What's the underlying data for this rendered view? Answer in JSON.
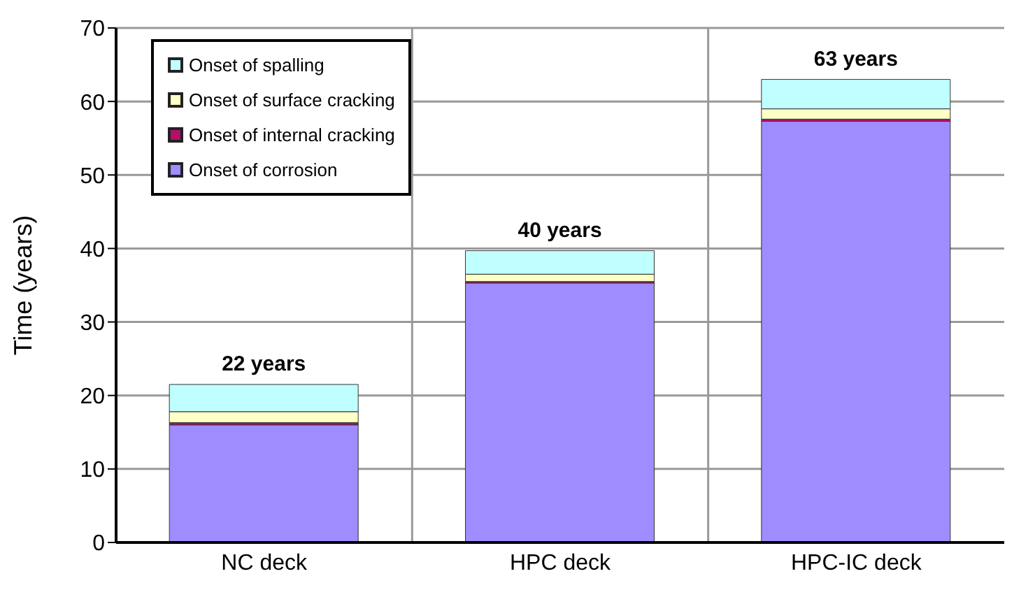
{
  "chart_data": {
    "type": "bar",
    "stacked": true,
    "ylabel": "Time (years)",
    "categories": [
      "NC deck",
      "HPC deck",
      "HPC-IC deck"
    ],
    "series": [
      {
        "name": "Onset of corrosion",
        "color": "#9f8cff",
        "values": [
          16,
          35.3,
          57.3
        ]
      },
      {
        "name": "Onset of internal cracking",
        "color": "#b0106a",
        "values": [
          0.3,
          0.2,
          0.3
        ]
      },
      {
        "name": "Onset of surface cracking",
        "color": "#ffffc8",
        "values": [
          1.5,
          1,
          1.4
        ]
      },
      {
        "name": "Onset of spalling",
        "color": "#c0ffff",
        "values": [
          3.7,
          3.2,
          4
        ]
      }
    ],
    "totals": [
      "22 years",
      "40 years",
      "63 years"
    ],
    "ylim": [
      0,
      70
    ],
    "yticks": [
      0,
      10,
      20,
      30,
      40,
      50,
      60,
      70
    ],
    "grid": true,
    "legend": "top left"
  }
}
